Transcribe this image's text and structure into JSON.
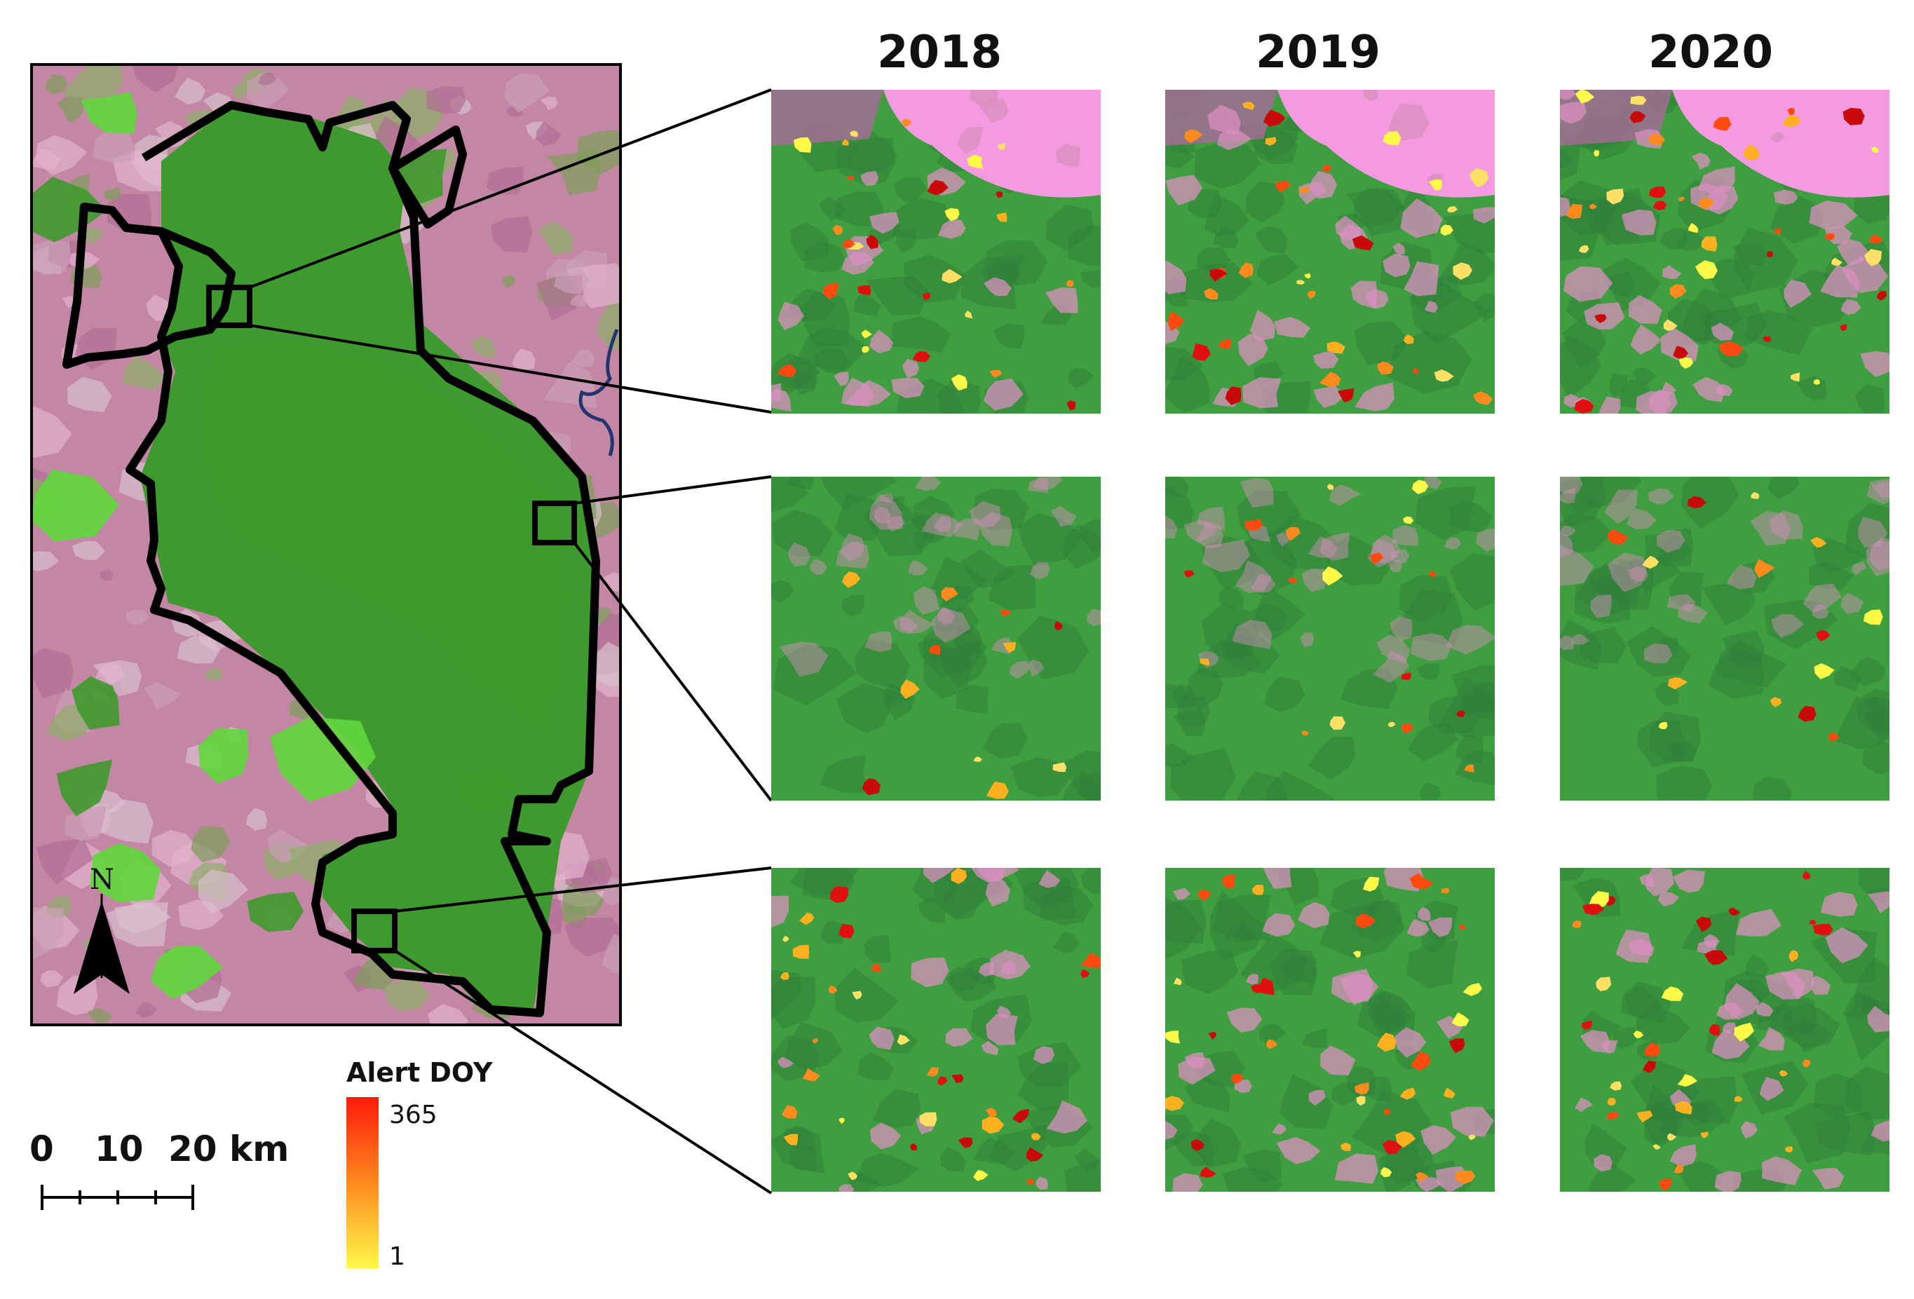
{
  "years": [
    "2018",
    "2019",
    "2020"
  ],
  "legend": {
    "title": "Alert DOY",
    "max": "365",
    "min": "1",
    "color_high": "#ff1a0a",
    "color_mid": "#ff8a1e",
    "color_low": "#fffa4a"
  },
  "scale_bar": {
    "ticks": [
      "0",
      "10",
      "20 km"
    ]
  },
  "north_arrow": {
    "label": "N"
  },
  "colors": {
    "forest": "#3f9e3f",
    "dark_forest": "#2f7f3a",
    "cleared": "#d98fbf",
    "bright_pink": "#f39ae0",
    "boundary": "#000000",
    "river": "#22356e"
  },
  "panels": [
    {
      "row": 0,
      "year": "2018",
      "alerts": 28
    },
    {
      "row": 0,
      "year": "2019",
      "alerts": 34
    },
    {
      "row": 0,
      "year": "2020",
      "alerts": 40
    },
    {
      "row": 1,
      "year": "2018",
      "alerts": 12
    },
    {
      "row": 1,
      "year": "2019",
      "alerts": 18
    },
    {
      "row": 1,
      "year": "2020",
      "alerts": 14
    },
    {
      "row": 2,
      "year": "2018",
      "alerts": 32
    },
    {
      "row": 2,
      "year": "2019",
      "alerts": 36
    },
    {
      "row": 2,
      "year": "2020",
      "alerts": 34
    }
  ]
}
